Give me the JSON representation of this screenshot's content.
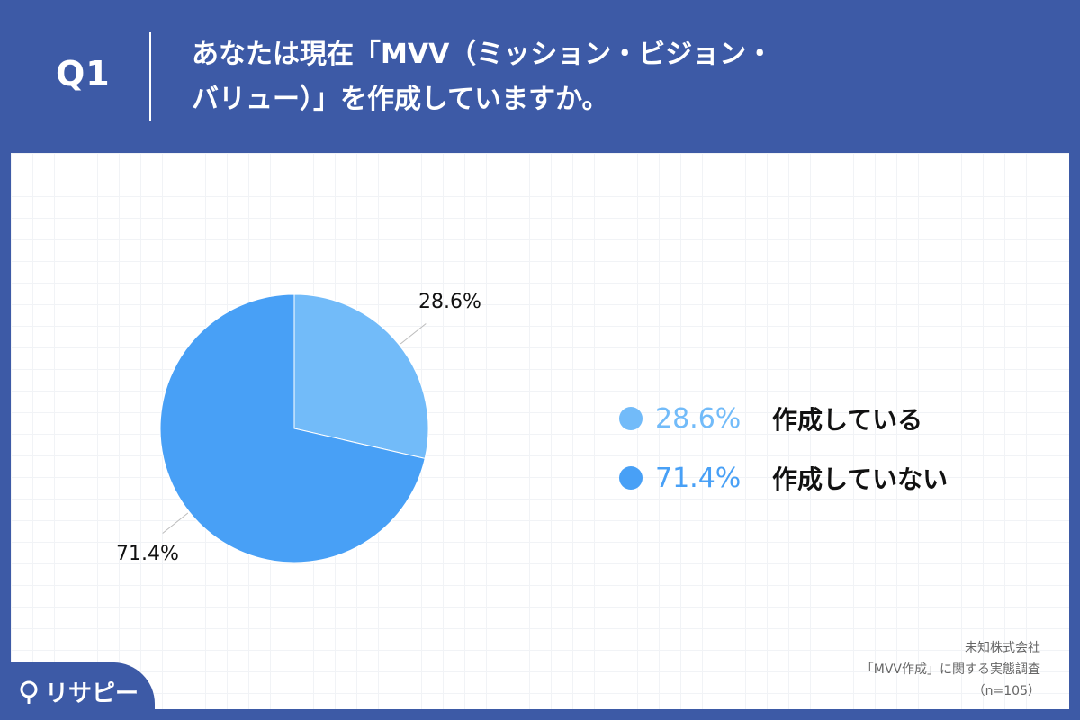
{
  "header": {
    "question_number": "Q1",
    "question_line1": "あなたは現在「MVV（ミッション・ビジョン・",
    "question_line2": "バリュー）」を作成していますか。"
  },
  "chart_data": {
    "type": "pie",
    "title": "",
    "slices": [
      {
        "label": "作成している",
        "value": 28.6,
        "display": "28.6%",
        "color": "#72bbf9"
      },
      {
        "label": "作成していない",
        "value": 71.4,
        "display": "71.4%",
        "color": "#48a0f6"
      }
    ],
    "start_angle_deg": 0,
    "direction": "clockwise",
    "legend_position": "right"
  },
  "legend": {
    "items": [
      {
        "percent": "28.6%",
        "label": "作成している",
        "color": "#72bbf9"
      },
      {
        "percent": "71.4%",
        "label": "作成していない",
        "color": "#48a0f6"
      }
    ]
  },
  "source": {
    "line1": "未知株式会社",
    "line2": "「MVV作成」に関する実態調査",
    "line3": "（n=105）"
  },
  "logo": {
    "text": "リサピー",
    "icon": "pin-icon"
  },
  "colors": {
    "background": "#3d5aa6",
    "panel": "#ffffff"
  }
}
